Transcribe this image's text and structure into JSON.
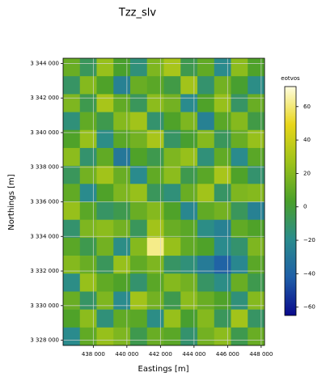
{
  "chart_data": {
    "type": "heatmap",
    "title": "Tzz_slv",
    "xlabel": "Eastings [m]",
    "ylabel": "Northings [m]",
    "colorbar_label": "eotvos",
    "xlim": [
      436200,
      448200
    ],
    "ylim": [
      3327700,
      3344300
    ],
    "xticks": [
      {
        "value": 438000,
        "label": "438 000"
      },
      {
        "value": 440000,
        "label": "440 000"
      },
      {
        "value": 442000,
        "label": "442 000"
      },
      {
        "value": 444000,
        "label": "444 000"
      },
      {
        "value": 446000,
        "label": "446 000"
      },
      {
        "value": 448000,
        "label": "448 000"
      }
    ],
    "yticks": [
      {
        "value": 3328000,
        "label": "3 328 000"
      },
      {
        "value": 3330000,
        "label": "3 330 000"
      },
      {
        "value": 3332000,
        "label": "3 332 000"
      },
      {
        "value": 3334000,
        "label": "3 334 000"
      },
      {
        "value": 3336000,
        "label": "3 336 000"
      },
      {
        "value": 3338000,
        "label": "3 338 000"
      },
      {
        "value": 3340000,
        "label": "3 340 000"
      },
      {
        "value": 3342000,
        "label": "3 342 000"
      },
      {
        "value": 3344000,
        "label": "3 344 000"
      }
    ],
    "zlim": [
      -65,
      72
    ],
    "zticks": [
      {
        "value": -60,
        "label": "−60"
      },
      {
        "value": -40,
        "label": "−40"
      },
      {
        "value": -20,
        "label": "−20"
      },
      0,
      20,
      40,
      60
    ],
    "colorscale": [
      "#0a0a8c",
      "#1f5fa8",
      "#2a8c8c",
      "#4aa02a",
      "#9cc21a",
      "#e8d61a",
      "#fffde0"
    ],
    "grid": true,
    "z": [
      [
        12,
        -8,
        25,
        3,
        -15,
        18,
        30,
        -5,
        10,
        -20,
        22,
        5
      ],
      [
        -10,
        20,
        5,
        -25,
        12,
        8,
        -3,
        28,
        -12,
        15,
        2,
        -18
      ],
      [
        18,
        -5,
        30,
        10,
        -8,
        22,
        15,
        -20,
        5,
        25,
        -10,
        12
      ],
      [
        -15,
        10,
        -5,
        20,
        28,
        -12,
        5,
        18,
        -25,
        8,
        20,
        -3
      ],
      [
        5,
        25,
        -18,
        8,
        15,
        30,
        -10,
        2,
        20,
        -8,
        12,
        25
      ],
      [
        22,
        -12,
        10,
        -30,
        5,
        -5,
        18,
        25,
        -15,
        10,
        -20,
        8
      ],
      [
        -8,
        15,
        28,
        12,
        -20,
        10,
        22,
        -5,
        8,
        30,
        5,
        -12
      ],
      [
        10,
        -20,
        5,
        18,
        25,
        -8,
        -15,
        12,
        28,
        -10,
        18,
        20
      ],
      [
        25,
        8,
        -10,
        -5,
        12,
        20,
        5,
        -22,
        10,
        15,
        -8,
        -25
      ],
      [
        -12,
        18,
        22,
        15,
        -8,
        28,
        12,
        8,
        -18,
        -25,
        10,
        5
      ],
      [
        8,
        -5,
        15,
        -18,
        20,
        62,
        25,
        10,
        5,
        -20,
        -12,
        18
      ],
      [
        20,
        12,
        -8,
        25,
        10,
        18,
        -10,
        -15,
        -28,
        -40,
        -22,
        8
      ],
      [
        -18,
        25,
        10,
        5,
        -12,
        8,
        20,
        15,
        -10,
        -18,
        12,
        -5
      ],
      [
        12,
        -10,
        18,
        -20,
        28,
        15,
        -5,
        22,
        12,
        5,
        -15,
        20
      ],
      [
        5,
        22,
        -15,
        10,
        8,
        -18,
        25,
        2,
        20,
        -8,
        28,
        -10
      ],
      [
        -20,
        10,
        25,
        18,
        -5,
        12,
        8,
        -12,
        15,
        22,
        -5,
        12
      ]
    ]
  }
}
